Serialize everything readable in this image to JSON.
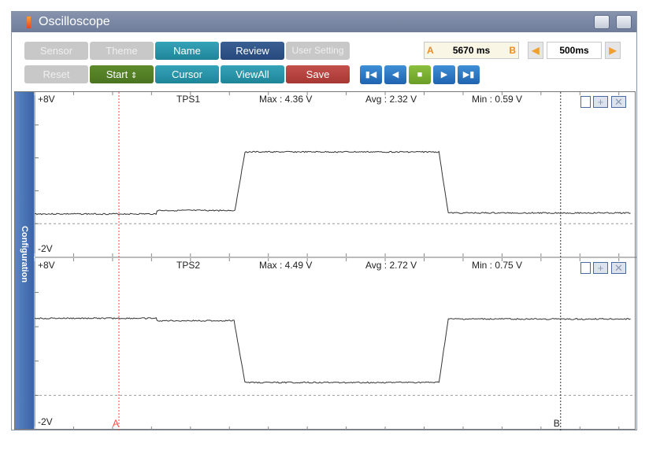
{
  "window": {
    "title": "Oscilloscope"
  },
  "toolbar": {
    "row1": [
      "Sensor",
      "Theme",
      "Name",
      "Review",
      "User Setting"
    ],
    "row2": [
      "Reset",
      "Start",
      "Cursor",
      "ViewAll",
      "Save"
    ],
    "start_arrow": "⇕"
  },
  "cursor_readout": {
    "a": "A",
    "b": "B",
    "value": "5670 ms"
  },
  "timebase": {
    "value": "500ms"
  },
  "playback": [
    "first",
    "prev",
    "stop",
    "next",
    "last"
  ],
  "sidebar": {
    "label": "Configuration"
  },
  "colors": {
    "teal": "#2196a9",
    "navy": "#2f5488",
    "green": "#55802a",
    "red": "#b4433f",
    "cursor_a": "#ff4444"
  },
  "chart_data": [
    {
      "type": "line",
      "name": "TPS1",
      "ymax_label": "+8V",
      "ymin_label": "-2V",
      "ylim": [
        -2,
        8
      ],
      "max": "Max : 4.36 V",
      "avg": "Avg : 2.32 V",
      "min": "Min : 0.59 V",
      "points": [
        [
          0,
          0.59
        ],
        [
          1560,
          0.59
        ],
        [
          1570,
          0.8
        ],
        [
          2570,
          0.8
        ],
        [
          2700,
          4.36
        ],
        [
          5190,
          4.36
        ],
        [
          5310,
          0.65
        ],
        [
          7660,
          0.65
        ]
      ]
    },
    {
      "type": "line",
      "name": "TPS2",
      "ymax_label": "+8V",
      "ymin_label": "-2V",
      "ylim": [
        -2,
        8
      ],
      "max": "Max : 4.49 V",
      "avg": "Avg : 2.72 V",
      "min": "Min : 0.75 V",
      "points": [
        [
          0,
          4.49
        ],
        [
          1560,
          4.49
        ],
        [
          1570,
          4.35
        ],
        [
          2560,
          4.35
        ],
        [
          2700,
          0.75
        ],
        [
          5190,
          0.75
        ],
        [
          5310,
          4.45
        ],
        [
          7660,
          4.45
        ]
      ]
    }
  ],
  "cursors": {
    "a_label": "A",
    "b_label": "B",
    "a_ms": 1082,
    "b_ms": 6752,
    "time_per_div_ms": 500
  }
}
